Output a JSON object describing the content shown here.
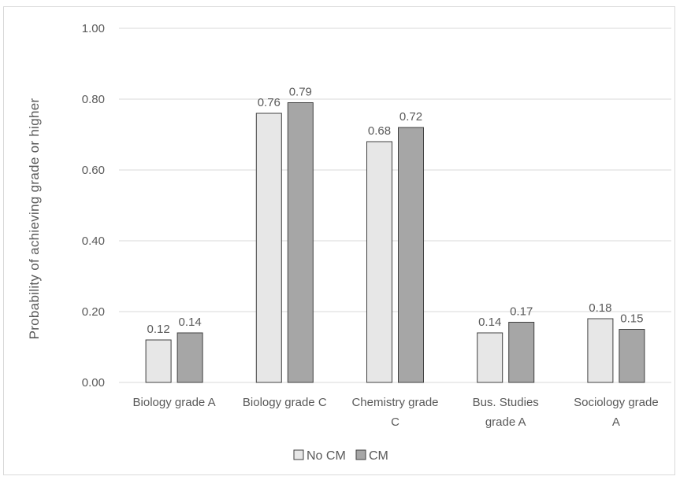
{
  "chart_data": {
    "type": "bar",
    "categories": [
      [
        "Biology grade A"
      ],
      [
        "Biology grade C"
      ],
      [
        "Chemistry grade",
        "C"
      ],
      [
        "Bus. Studies",
        "grade A"
      ],
      [
        "Sociology grade",
        "A"
      ]
    ],
    "series": [
      {
        "name": "No CM",
        "values": [
          0.12,
          0.76,
          0.68,
          0.14,
          0.18
        ],
        "value_labels": [
          "0.12",
          "0.76",
          "0.68",
          "0.14",
          "0.18"
        ],
        "color": "#e7e7e7"
      },
      {
        "name": "CM",
        "values": [
          0.14,
          0.79,
          0.72,
          0.17,
          0.15
        ],
        "value_labels": [
          "0.14",
          "0.79",
          "0.72",
          "0.17",
          "0.15"
        ],
        "color": "#a6a6a6"
      }
    ],
    "ylabel": "Probability of achieving grade or higher",
    "ylim": [
      0,
      1
    ],
    "yticks": [
      0,
      0.2,
      0.4,
      0.6,
      0.8,
      1.0
    ],
    "ytick_labels": [
      "0.00",
      "0.20",
      "0.40",
      "0.60",
      "0.80",
      "1.00"
    ],
    "grid": true,
    "legend": "bottom",
    "colors": {
      "gridline": "#d9d9d9",
      "bar_outline": "#404040",
      "text": "#595959"
    }
  }
}
